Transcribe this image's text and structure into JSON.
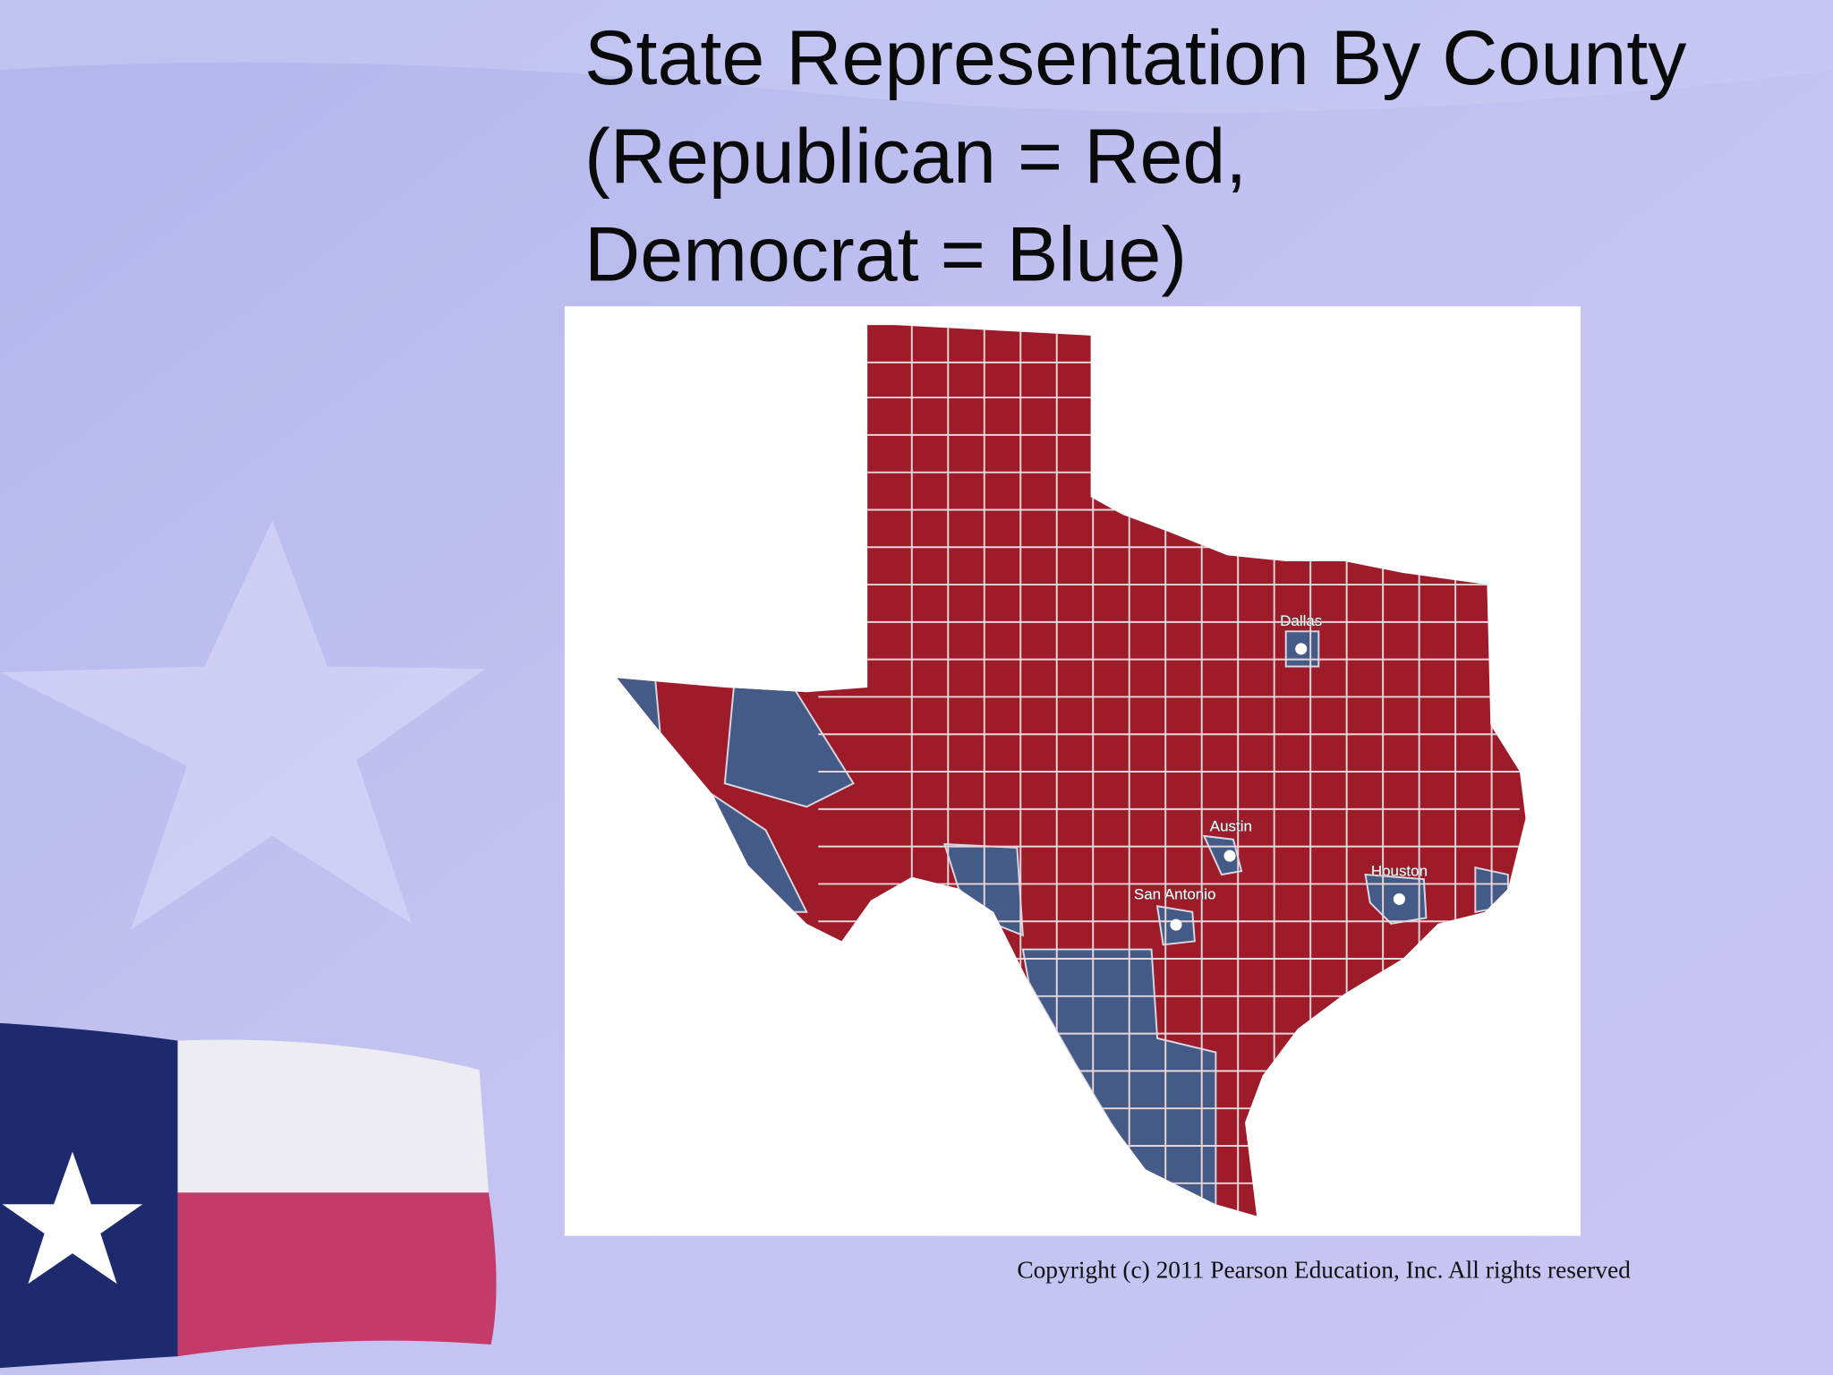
{
  "title": {
    "lines": [
      "State Representation By County",
      "(Republican = Red,",
      "Democrat = Blue)"
    ]
  },
  "map": {
    "labels": [
      "Dallas",
      "Austin",
      "San Antonio",
      "Houston"
    ]
  },
  "footer": {
    "copyright": "Copyright (c) 2011 Pearson Education, Inc. All rights reserved"
  }
}
